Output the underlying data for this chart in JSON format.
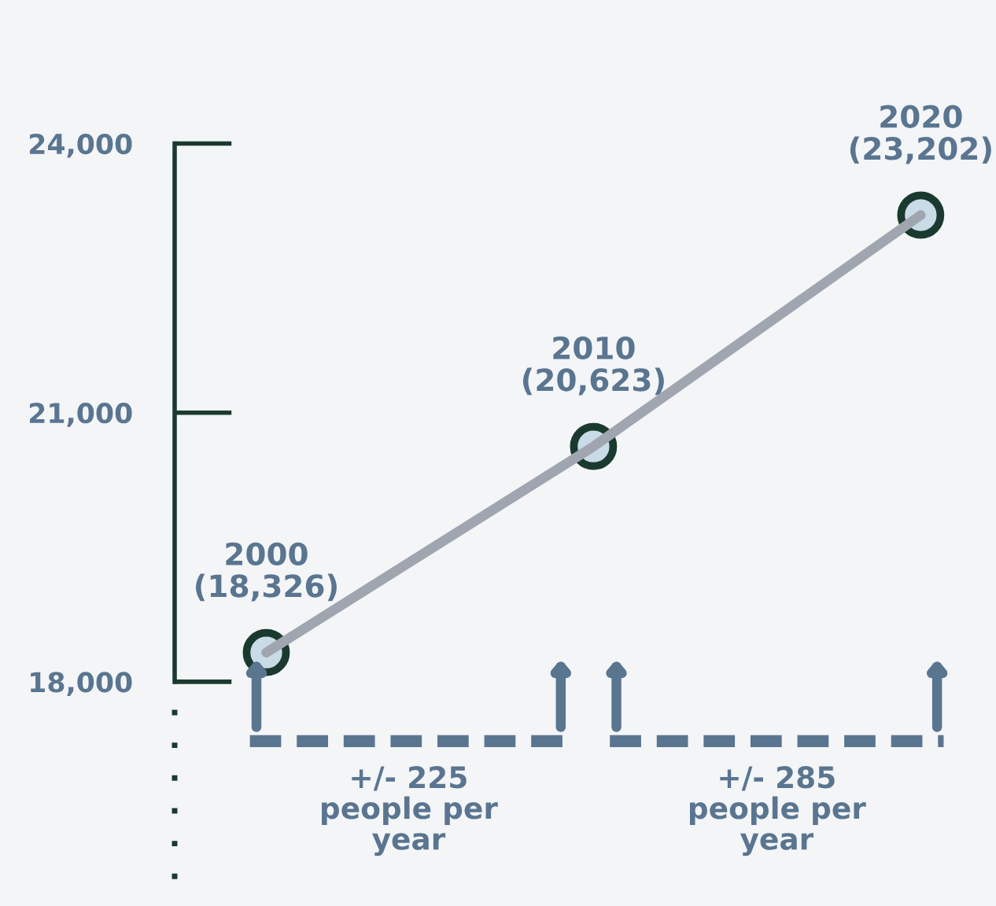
{
  "chart_data": {
    "type": "line",
    "categories": [
      null,
      null,
      null
    ],
    "series": [
      {
        "color": "#a0a6b0",
        "values": [
          18326,
          20623,
          23202
        ]
      },
      {
        "type": "scatter",
        "color": "#c8dbe6",
        "marker": "circle",
        "values": [
          18326,
          20623,
          23202
        ],
        "value_labels": [
          "2000\n(18,326)",
          "2010\n(20,623)",
          "2020\n(23,202)"
        ]
      }
    ],
    "ylim": [
      15500,
      25600
    ],
    "yticks": [
      {
        "value": 18000,
        "label": "18,000"
      },
      {
        "value": 21000,
        "label": "21,000"
      },
      {
        "value": 24000,
        "label": "24,000"
      }
    ],
    "tick_labels": "y",
    "grid": false,
    "annotations": [
      "+/- 225\npeople per\nyear",
      "+/- 285\npeople per\nyear"
    ]
  }
}
